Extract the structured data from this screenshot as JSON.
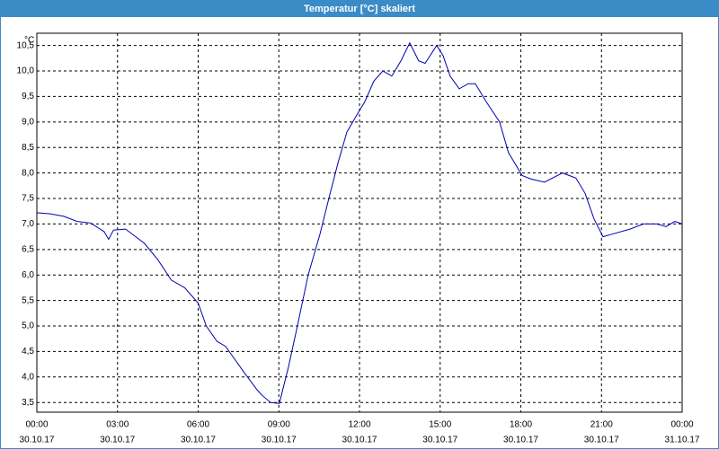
{
  "chart_data": {
    "type": "line",
    "title": "Temperatur [°C] skaliert",
    "y_label": "°C",
    "x": [
      0,
      0.5,
      1.0,
      1.5,
      2.0,
      2.5,
      2.67,
      2.85,
      3.3,
      3.6,
      4.0,
      4.5,
      5.0,
      5.5,
      6.0,
      6.3,
      6.7,
      7.02,
      7.69,
      8.19,
      8.36,
      8.69,
      9.02,
      9.36,
      9.69,
      10.09,
      10.53,
      10.86,
      11.2,
      11.53,
      11.86,
      12.2,
      12.53,
      12.87,
      13.2,
      13.54,
      13.87,
      14.2,
      14.44,
      14.87,
      15.11,
      15.37,
      15.71,
      16.04,
      16.31,
      16.71,
      17.21,
      17.54,
      18.05,
      18.38,
      18.88,
      19.55,
      20.05,
      20.39,
      20.72,
      21.06,
      21.39,
      22.06,
      22.56,
      23.06,
      23.4,
      23.73,
      24.0
    ],
    "series": [
      {
        "color": "#0000b0",
        "values": [
          7.22,
          7.2,
          7.15,
          7.05,
          7.02,
          6.85,
          6.7,
          6.88,
          6.9,
          6.78,
          6.62,
          6.3,
          5.9,
          5.75,
          5.45,
          5.0,
          4.7,
          4.6,
          4.1,
          3.75,
          3.65,
          3.5,
          3.48,
          4.2,
          5.0,
          6.0,
          6.8,
          7.5,
          8.2,
          8.8,
          9.1,
          9.4,
          9.8,
          10.0,
          9.9,
          10.2,
          10.55,
          10.2,
          10.15,
          10.5,
          10.3,
          9.9,
          9.65,
          9.75,
          9.75,
          9.4,
          9.0,
          8.4,
          7.95,
          7.88,
          7.82,
          8.0,
          7.9,
          7.6,
          7.1,
          6.75,
          6.8,
          6.9,
          7.0,
          7.0,
          6.95,
          7.05,
          7.0
        ]
      }
    ],
    "xlim": [
      0,
      24
    ],
    "xticks": [
      {
        "value": 0,
        "label": "00:00"
      },
      {
        "value": 3,
        "label": "03:00"
      },
      {
        "value": 6,
        "label": "06:00"
      },
      {
        "value": 9,
        "label": "09:00"
      },
      {
        "value": 12,
        "label": "12:00"
      },
      {
        "value": 15,
        "label": "15:00"
      },
      {
        "value": 18,
        "label": "18:00"
      },
      {
        "value": 21,
        "label": "21:00"
      },
      {
        "value": 24,
        "label": "00:00"
      }
    ],
    "xtick_dates": [
      "30.10.17",
      "30.10.17",
      "30.10.17",
      "30.10.17",
      "30.10.17",
      "30.10.17",
      "30.10.17",
      "30.10.17",
      "31.10.17"
    ],
    "ylim": [
      3.31,
      10.74
    ],
    "yticks": [
      {
        "value": 3.5,
        "label": "3,5"
      },
      {
        "value": 4,
        "label": "4,0"
      },
      {
        "value": 4.5,
        "label": "4,5"
      },
      {
        "value": 5,
        "label": "5,0"
      },
      {
        "value": 5.5,
        "label": "5,5"
      },
      {
        "value": 6,
        "label": "6,0"
      },
      {
        "value": 6.5,
        "label": "6,5"
      },
      {
        "value": 7,
        "label": "7,0"
      },
      {
        "value": 7.5,
        "label": "7,5"
      },
      {
        "value": 8,
        "label": "8,0"
      },
      {
        "value": 8.5,
        "label": "8,5"
      },
      {
        "value": 9,
        "label": "9,0"
      },
      {
        "value": 9.5,
        "label": "9,5"
      },
      {
        "value": 10,
        "label": "10,0"
      },
      {
        "value": 10.5,
        "label": "10,5"
      }
    ],
    "grid": true
  }
}
